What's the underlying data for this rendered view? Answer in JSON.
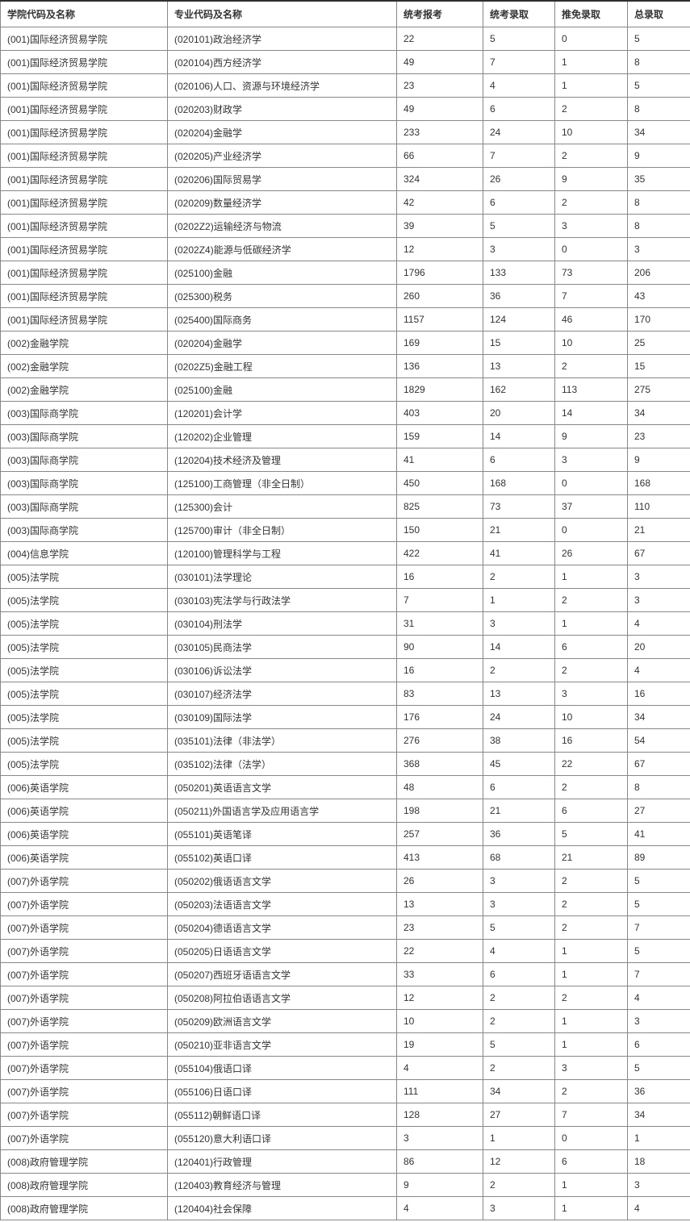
{
  "table": {
    "columns": [
      "学院代码及名称",
      "专业代码及名称",
      "统考报考",
      "统考录取",
      "推免录取",
      "总录取"
    ],
    "column_semantic_names": [
      "college-code-name-cell",
      "major-code-name-cell",
      "unified-exam-applicants-cell",
      "unified-exam-admitted-cell",
      "exempt-admitted-cell",
      "total-admitted-cell"
    ],
    "rows": [
      [
        "(001)国际经济贸易学院",
        "(020101)政治经济学",
        "22",
        "5",
        "0",
        "5"
      ],
      [
        "(001)国际经济贸易学院",
        "(020104)西方经济学",
        "49",
        "7",
        "1",
        "8"
      ],
      [
        "(001)国际经济贸易学院",
        "(020106)人口、资源与环境经济学",
        "23",
        "4",
        "1",
        "5"
      ],
      [
        "(001)国际经济贸易学院",
        "(020203)财政学",
        "49",
        "6",
        "2",
        "8"
      ],
      [
        "(001)国际经济贸易学院",
        "(020204)金融学",
        "233",
        "24",
        "10",
        "34"
      ],
      [
        "(001)国际经济贸易学院",
        "(020205)产业经济学",
        "66",
        "7",
        "2",
        "9"
      ],
      [
        "(001)国际经济贸易学院",
        "(020206)国际贸易学",
        "324",
        "26",
        "9",
        "35"
      ],
      [
        "(001)国际经济贸易学院",
        "(020209)数量经济学",
        "42",
        "6",
        "2",
        "8"
      ],
      [
        "(001)国际经济贸易学院",
        "(0202Z2)运输经济与物流",
        "39",
        "5",
        "3",
        "8"
      ],
      [
        "(001)国际经济贸易学院",
        "(0202Z4)能源与低碳经济学",
        "12",
        "3",
        "0",
        "3"
      ],
      [
        "(001)国际经济贸易学院",
        "(025100)金融",
        "1796",
        "133",
        "73",
        "206"
      ],
      [
        "(001)国际经济贸易学院",
        "(025300)税务",
        "260",
        "36",
        "7",
        "43"
      ],
      [
        "(001)国际经济贸易学院",
        "(025400)国际商务",
        "1157",
        "124",
        "46",
        "170"
      ],
      [
        "(002)金融学院",
        "(020204)金融学",
        "169",
        "15",
        "10",
        "25"
      ],
      [
        "(002)金融学院",
        "(0202Z5)金融工程",
        "136",
        "13",
        "2",
        "15"
      ],
      [
        "(002)金融学院",
        "(025100)金融",
        "1829",
        "162",
        "113",
        "275"
      ],
      [
        "(003)国际商学院",
        "(120201)会计学",
        "403",
        "20",
        "14",
        "34"
      ],
      [
        "(003)国际商学院",
        "(120202)企业管理",
        "159",
        "14",
        "9",
        "23"
      ],
      [
        "(003)国际商学院",
        "(120204)技术经济及管理",
        "41",
        "6",
        "3",
        "9"
      ],
      [
        "(003)国际商学院",
        "(125100)工商管理（非全日制）",
        "450",
        "168",
        "0",
        "168"
      ],
      [
        "(003)国际商学院",
        "(125300)会计",
        "825",
        "73",
        "37",
        "110"
      ],
      [
        "(003)国际商学院",
        "(125700)审计（非全日制）",
        "150",
        "21",
        "0",
        "21"
      ],
      [
        "(004)信息学院",
        "(120100)管理科学与工程",
        "422",
        "41",
        "26",
        "67"
      ],
      [
        "(005)法学院",
        "(030101)法学理论",
        "16",
        "2",
        "1",
        "3"
      ],
      [
        "(005)法学院",
        "(030103)宪法学与行政法学",
        "7",
        "1",
        "2",
        "3"
      ],
      [
        "(005)法学院",
        "(030104)刑法学",
        "31",
        "3",
        "1",
        "4"
      ],
      [
        "(005)法学院",
        "(030105)民商法学",
        "90",
        "14",
        "6",
        "20"
      ],
      [
        "(005)法学院",
        "(030106)诉讼法学",
        "16",
        "2",
        "2",
        "4"
      ],
      [
        "(005)法学院",
        "(030107)经济法学",
        "83",
        "13",
        "3",
        "16"
      ],
      [
        "(005)法学院",
        "(030109)国际法学",
        "176",
        "24",
        "10",
        "34"
      ],
      [
        "(005)法学院",
        "(035101)法律（非法学）",
        "276",
        "38",
        "16",
        "54"
      ],
      [
        "(005)法学院",
        "(035102)法律（法学）",
        "368",
        "45",
        "22",
        "67"
      ],
      [
        "(006)英语学院",
        "(050201)英语语言文学",
        "48",
        "6",
        "2",
        "8"
      ],
      [
        "(006)英语学院",
        "(050211)外国语言学及应用语言学",
        "198",
        "21",
        "6",
        "27"
      ],
      [
        "(006)英语学院",
        "(055101)英语笔译",
        "257",
        "36",
        "5",
        "41"
      ],
      [
        "(006)英语学院",
        "(055102)英语口译",
        "413",
        "68",
        "21",
        "89"
      ],
      [
        "(007)外语学院",
        "(050202)俄语语言文学",
        "26",
        "3",
        "2",
        "5"
      ],
      [
        "(007)外语学院",
        "(050203)法语语言文学",
        "13",
        "3",
        "2",
        "5"
      ],
      [
        "(007)外语学院",
        "(050204)德语语言文学",
        "23",
        "5",
        "2",
        "7"
      ],
      [
        "(007)外语学院",
        "(050205)日语语言文学",
        "22",
        "4",
        "1",
        "5"
      ],
      [
        "(007)外语学院",
        "(050207)西班牙语语言文学",
        "33",
        "6",
        "1",
        "7"
      ],
      [
        "(007)外语学院",
        "(050208)阿拉伯语语言文学",
        "12",
        "2",
        "2",
        "4"
      ],
      [
        "(007)外语学院",
        "(050209)欧洲语言文学",
        "10",
        "2",
        "1",
        "3"
      ],
      [
        "(007)外语学院",
        "(050210)亚非语言文学",
        "19",
        "5",
        "1",
        "6"
      ],
      [
        "(007)外语学院",
        "(055104)俄语口译",
        "4",
        "2",
        "3",
        "5"
      ],
      [
        "(007)外语学院",
        "(055106)日语口译",
        "111",
        "34",
        "2",
        "36"
      ],
      [
        "(007)外语学院",
        "(055112)朝鲜语口译",
        "128",
        "27",
        "7",
        "34"
      ],
      [
        "(007)外语学院",
        "(055120)意大利语口译",
        "3",
        "1",
        "0",
        "1"
      ],
      [
        "(008)政府管理学院",
        "(120401)行政管理",
        "86",
        "12",
        "6",
        "18"
      ],
      [
        "(008)政府管理学院",
        "(120403)教育经济与管理",
        "9",
        "2",
        "1",
        "3"
      ],
      [
        "(008)政府管理学院",
        "(120404)社会保障",
        "4",
        "3",
        "1",
        "4"
      ]
    ]
  },
  "colors": {
    "border_inner": "#888888",
    "border_top": "#2f2f2f",
    "text": "#333333",
    "background": "#ffffff"
  }
}
